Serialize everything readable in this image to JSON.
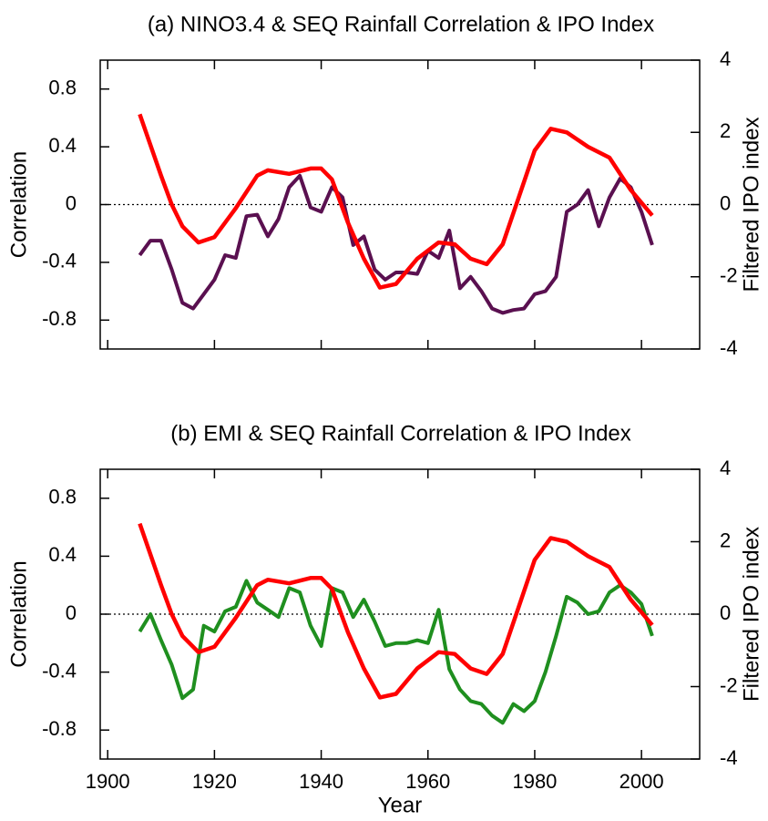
{
  "chart_data": [
    {
      "type": "line",
      "title": "(a) NINO3.4 & SEQ Rainfall Correlation & IPO Index",
      "y_label": "Correlation",
      "y2_label": "Filtered IPO index",
      "xlim": [
        1898.6,
        2010.9
      ],
      "xticks": [
        1900,
        1920,
        1940,
        1960,
        1980,
        2000
      ],
      "show_xtick_labels": false,
      "ylim": [
        -1,
        1
      ],
      "yticks": [
        -0.8,
        -0.4,
        0,
        0.4,
        0.8
      ],
      "y2lim": [
        -4,
        4
      ],
      "y2ticks": [
        -4,
        -2,
        0,
        2,
        4
      ],
      "zero_line": true,
      "y_color": "#5a1050",
      "y2_color": "#ff0000",
      "series": [
        {
          "name": "Correlation",
          "color": "#5a1050",
          "x": [
            1906,
            1908,
            1910,
            1912,
            1914,
            1916,
            1918,
            1920,
            1922,
            1924,
            1926,
            1928,
            1930,
            1932,
            1934,
            1936,
            1938,
            1940,
            1942,
            1944,
            1946,
            1948,
            1950,
            1952,
            1954,
            1956,
            1958,
            1960,
            1962,
            1964,
            1966,
            1968,
            1970,
            1972,
            1974,
            1976,
            1978,
            1980,
            1982,
            1984,
            1986,
            1988,
            1990,
            1992,
            1994,
            1996,
            1998,
            2000,
            2002
          ],
          "values": [
            -0.35,
            -0.25,
            -0.25,
            -0.45,
            -0.68,
            -0.72,
            -0.62,
            -0.52,
            -0.35,
            -0.37,
            -0.08,
            -0.07,
            -0.22,
            -0.1,
            0.12,
            0.2,
            -0.02,
            -0.05,
            0.12,
            0.05,
            -0.28,
            -0.22,
            -0.45,
            -0.52,
            -0.47,
            -0.47,
            -0.48,
            -0.32,
            -0.37,
            -0.18,
            -0.58,
            -0.5,
            -0.6,
            -0.72,
            -0.75,
            -0.73,
            -0.72,
            -0.62,
            -0.6,
            -0.5,
            -0.05,
            0.0,
            0.1,
            -0.15,
            0.05,
            0.18,
            0.12,
            -0.05,
            -0.28
          ]
        },
        {
          "name": "Filtered IPO index",
          "color": "#ff0000",
          "axis": "y2",
          "x": [
            1906,
            1910,
            1912,
            1914,
            1917,
            1920,
            1924,
            1928,
            1930,
            1934,
            1938,
            1940,
            1942,
            1945,
            1948,
            1951,
            1954,
            1958,
            1962,
            1965,
            1968,
            1971,
            1974,
            1977,
            1980,
            1983,
            1986,
            1990,
            1994,
            1998,
            2002
          ],
          "values": [
            2.5,
            0.8,
            0,
            -0.6,
            -1.05,
            -0.9,
            -0.1,
            0.8,
            0.95,
            0.85,
            1.0,
            1.0,
            0.7,
            -0.5,
            -1.5,
            -2.3,
            -2.2,
            -1.5,
            -1.05,
            -1.1,
            -1.5,
            -1.65,
            -1.1,
            0.2,
            1.5,
            2.1,
            2.0,
            1.6,
            1.3,
            0.4,
            -0.3
          ]
        }
      ]
    },
    {
      "type": "line",
      "title": "(b) EMI & SEQ Rainfall Correlation & IPO Index",
      "x_label": "Year",
      "y_label": "Correlation",
      "y2_label": "Filtered IPO index",
      "xlim": [
        1898.6,
        2010.9
      ],
      "xticks": [
        1900,
        1920,
        1940,
        1960,
        1980,
        2000
      ],
      "show_xtick_labels": true,
      "ylim": [
        -1,
        1
      ],
      "yticks": [
        -0.8,
        -0.4,
        0,
        0.4,
        0.8
      ],
      "y2lim": [
        -4,
        4
      ],
      "y2ticks": [
        -4,
        -2,
        0,
        2,
        4
      ],
      "zero_line": true,
      "y_color": "#1f8f1f",
      "y2_color": "#ff0000",
      "series": [
        {
          "name": "Correlation",
          "color": "#1f8f1f",
          "x": [
            1906,
            1908,
            1910,
            1912,
            1914,
            1916,
            1918,
            1920,
            1922,
            1924,
            1926,
            1928,
            1930,
            1932,
            1934,
            1936,
            1938,
            1940,
            1942,
            1944,
            1946,
            1948,
            1950,
            1952,
            1954,
            1956,
            1958,
            1960,
            1962,
            1964,
            1966,
            1968,
            1970,
            1972,
            1974,
            1976,
            1978,
            1980,
            1982,
            1984,
            1986,
            1988,
            1990,
            1992,
            1994,
            1996,
            1998,
            2000,
            2002
          ],
          "values": [
            -0.12,
            0.0,
            -0.18,
            -0.35,
            -0.58,
            -0.52,
            -0.08,
            -0.12,
            0.02,
            0.05,
            0.23,
            0.08,
            0.03,
            -0.02,
            0.18,
            0.15,
            -0.08,
            -0.22,
            0.18,
            0.15,
            -0.02,
            0.1,
            -0.05,
            -0.22,
            -0.2,
            -0.2,
            -0.18,
            -0.2,
            0.03,
            -0.38,
            -0.52,
            -0.6,
            -0.62,
            -0.7,
            -0.75,
            -0.62,
            -0.67,
            -0.6,
            -0.4,
            -0.15,
            0.12,
            0.08,
            0.0,
            0.02,
            0.15,
            0.2,
            0.15,
            0.07,
            -0.15
          ]
        },
        {
          "name": "Filtered IPO index",
          "color": "#ff0000",
          "axis": "y2",
          "x": [
            1906,
            1910,
            1912,
            1914,
            1917,
            1920,
            1924,
            1928,
            1930,
            1934,
            1938,
            1940,
            1942,
            1945,
            1948,
            1951,
            1954,
            1958,
            1962,
            1965,
            1968,
            1971,
            1974,
            1977,
            1980,
            1983,
            1986,
            1990,
            1994,
            1998,
            2002
          ],
          "values": [
            2.5,
            0.8,
            0,
            -0.6,
            -1.05,
            -0.9,
            -0.1,
            0.8,
            0.95,
            0.85,
            1.0,
            1.0,
            0.7,
            -0.5,
            -1.5,
            -2.3,
            -2.2,
            -1.5,
            -1.05,
            -1.1,
            -1.5,
            -1.65,
            -1.1,
            0.2,
            1.5,
            2.1,
            2.0,
            1.6,
            1.3,
            0.4,
            -0.3
          ]
        }
      ]
    }
  ]
}
